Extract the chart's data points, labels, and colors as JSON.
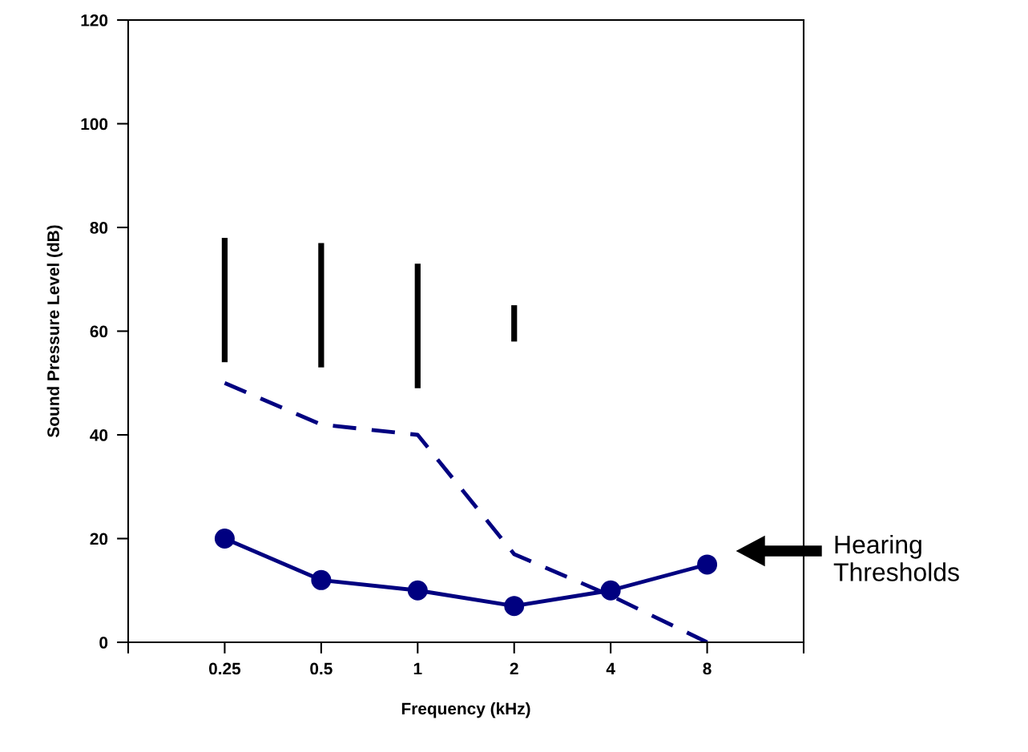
{
  "chart_data": {
    "type": "line",
    "xlabel": "Frequency (kHz)",
    "ylabel": "Sound Pressure Level (dB)",
    "categories": [
      null,
      "0.25",
      "0.5",
      "1",
      "2",
      "4",
      "8",
      null
    ],
    "series": [
      {
        "type": "bar",
        "color": "#000000",
        "base": [
          null,
          54,
          53,
          49,
          58,
          null,
          null,
          null
        ],
        "values": [
          null,
          24,
          24,
          24,
          7,
          null,
          null,
          null
        ]
      },
      {
        "color": "#000080",
        "line_style": "dashed",
        "marker": "none",
        "values": [
          null,
          50,
          42,
          40,
          17,
          9,
          0,
          null
        ]
      },
      {
        "color": "#000080",
        "line_style": "solid",
        "marker": "circle",
        "values": [
          null,
          20,
          12,
          10,
          7,
          10,
          15,
          null
        ]
      }
    ],
    "ylim": [
      0,
      120
    ],
    "yticks": [
      0,
      20,
      40,
      60,
      80,
      100,
      120
    ],
    "grid": false,
    "legend": false,
    "annotations": [
      "Hearing\nThresholds"
    ]
  }
}
